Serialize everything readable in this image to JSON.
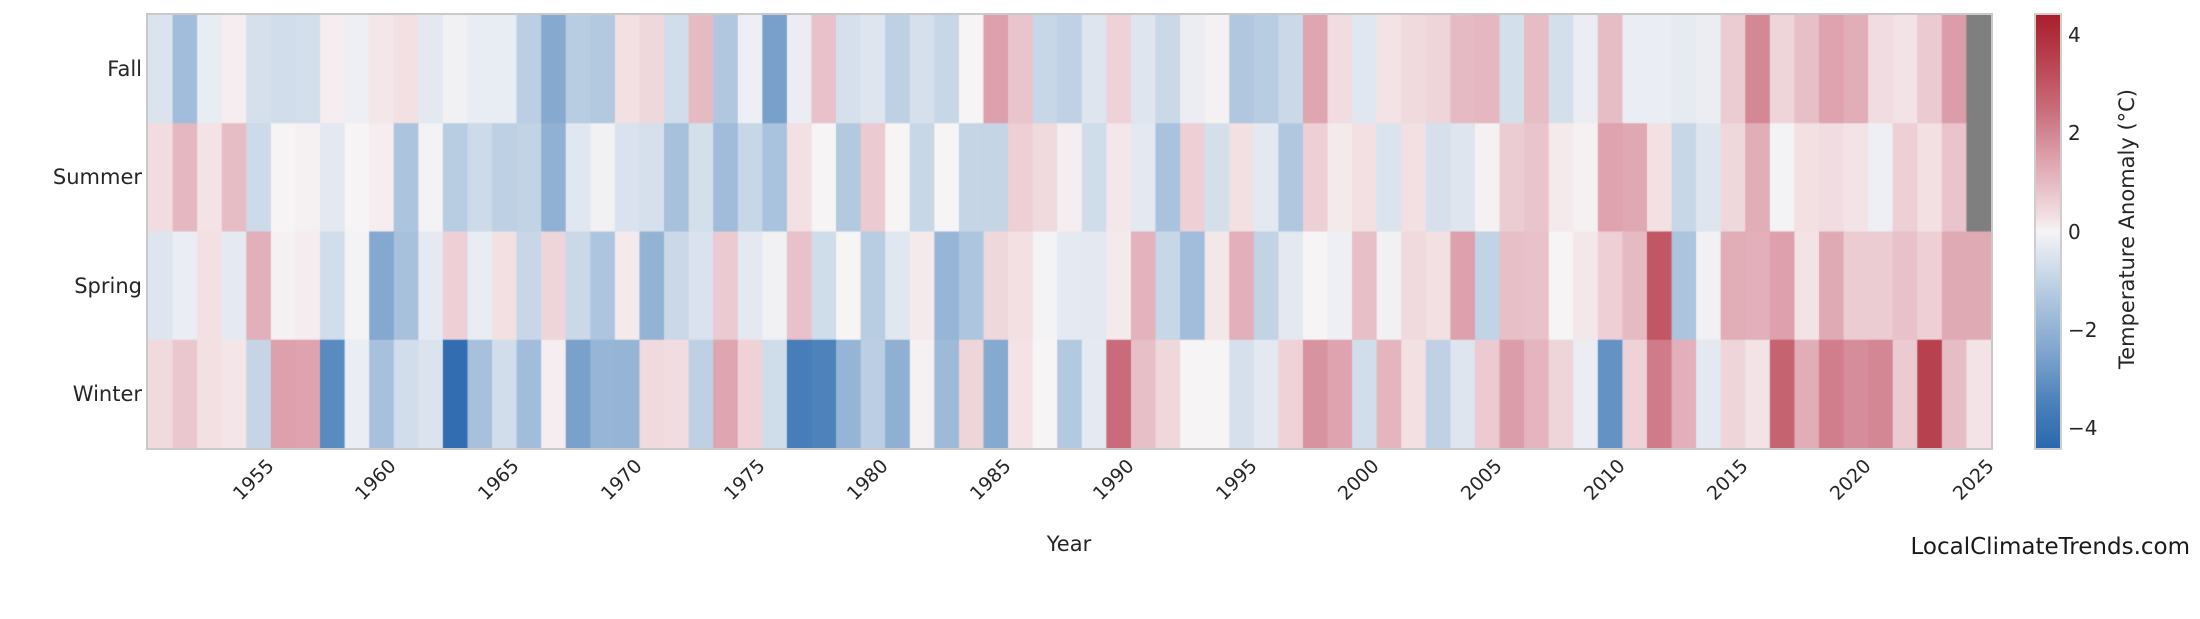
{
  "watermark": "LocalClimateTrends.com",
  "axes": {
    "xlabel": "Year",
    "x_ticks": [
      1955,
      1960,
      1965,
      1970,
      1975,
      1980,
      1985,
      1990,
      1995,
      2000,
      2005,
      2010,
      2015,
      2020,
      2025
    ]
  },
  "colorbar": {
    "label": "Temperature Anomaly (°C)",
    "ticks": [
      4,
      2,
      0,
      -2,
      -4
    ],
    "tick_labels": [
      "4",
      "2",
      "0",
      "−2",
      "−4"
    ],
    "vmin": -4.4,
    "vmax": 4.4
  },
  "colors": {
    "missing": "#7f7f7f",
    "frame": "#c9c9c9",
    "text": "#262626",
    "colormap": [
      {
        "v": -4.4,
        "c": "#2b68ae"
      },
      {
        "v": -3.5,
        "c": "#4a80ba"
      },
      {
        "v": -2.5,
        "c": "#7da3cd"
      },
      {
        "v": -1.5,
        "c": "#a9c2dd"
      },
      {
        "v": -0.8,
        "c": "#ccdae9"
      },
      {
        "v": -0.3,
        "c": "#e5eaf2"
      },
      {
        "v": 0.0,
        "c": "#f6f4f5"
      },
      {
        "v": 0.3,
        "c": "#f2e0e3"
      },
      {
        "v": 0.8,
        "c": "#e9c4cc"
      },
      {
        "v": 1.5,
        "c": "#dda0ac"
      },
      {
        "v": 2.5,
        "c": "#c96b7a"
      },
      {
        "v": 3.5,
        "c": "#b8414f"
      },
      {
        "v": 4.4,
        "c": "#a91e2c"
      }
    ]
  },
  "chart_data": {
    "type": "heatmap",
    "title": "",
    "xlabel": "Year",
    "ylabel": "",
    "x_range": [
      1951,
      2025
    ],
    "rows": [
      "Fall",
      "Summer",
      "Spring",
      "Winter"
    ],
    "legend": "Temperature Anomaly (°C), diverging blue-white-red scale from -4.4 to 4.4; gray = missing",
    "missing_cells": [
      [
        "Fall",
        2025
      ],
      [
        "Summer",
        2025
      ]
    ],
    "values": {
      "Fall": [
        -0.5,
        -1.65,
        -0.25,
        0.1,
        -0.6,
        -0.7,
        -0.65,
        0.1,
        -0.15,
        0.2,
        0.3,
        -0.35,
        -0.08,
        -0.25,
        -0.25,
        -1.15,
        -2.3,
        -1.2,
        -1.3,
        0.3,
        0.45,
        -0.7,
        1.0,
        -1.35,
        -0.15,
        -2.6,
        -0.2,
        0.85,
        -0.6,
        -0.45,
        -1.1,
        -0.6,
        -0.9,
        0.0,
        1.5,
        0.8,
        -0.9,
        -1.05,
        -0.45,
        0.55,
        -0.45,
        -0.85,
        -0.2,
        0.05,
        -1.35,
        -1.2,
        -0.85,
        1.4,
        0.35,
        -0.4,
        0.25,
        0.4,
        0.5,
        1.0,
        1.05,
        -0.65,
        0.95,
        -0.65,
        -0.2,
        0.95,
        -0.22,
        -0.22,
        -0.28,
        -0.2,
        0.65,
        1.95,
        0.5,
        0.9,
        1.45,
        1.25,
        0.35,
        0.25,
        0.7,
        1.55,
        null
      ],
      "Summer": [
        0.35,
        1.05,
        0.25,
        0.95,
        -0.8,
        0.0,
        0.05,
        -0.35,
        0.0,
        0.1,
        -1.45,
        -0.05,
        -1.2,
        -0.8,
        -1.1,
        -1.0,
        -2.05,
        -0.4,
        -0.08,
        -0.55,
        -0.6,
        -1.55,
        -0.65,
        -1.7,
        -0.9,
        -1.5,
        0.3,
        0.0,
        -1.3,
        0.7,
        0.0,
        -0.9,
        0.0,
        -0.95,
        -0.95,
        0.6,
        0.4,
        0.1,
        -0.75,
        0.2,
        -0.35,
        -1.5,
        0.6,
        -0.65,
        0.3,
        -0.35,
        -1.35,
        0.6,
        0.15,
        0.3,
        -0.5,
        0.3,
        -0.6,
        -0.45,
        0.05,
        0.65,
        0.8,
        0.15,
        0.05,
        1.45,
        1.35,
        0.3,
        -0.9,
        -0.45,
        0.45,
        1.25,
        -0.05,
        0.3,
        0.35,
        0.25,
        -0.15,
        0.6,
        0.3,
        0.8,
        null
      ],
      "Spring": [
        -0.45,
        -0.22,
        0.3,
        -0.3,
        1.2,
        0.05,
        0.12,
        -0.7,
        -0.05,
        -2.35,
        -1.55,
        -0.3,
        0.6,
        -0.25,
        0.3,
        -0.9,
        0.5,
        -0.85,
        -1.4,
        0.15,
        -2.0,
        -0.85,
        -0.55,
        0.7,
        -0.35,
        -0.08,
        0.85,
        -0.75,
        0.0,
        -1.2,
        -0.4,
        0.15,
        -1.9,
        -1.4,
        0.45,
        0.3,
        -0.05,
        -0.3,
        -0.35,
        0.15,
        1.15,
        -0.9,
        -1.65,
        0.2,
        1.2,
        -1.0,
        -0.35,
        0.0,
        -0.15,
        0.9,
        -0.08,
        0.4,
        0.3,
        1.5,
        -1.0,
        0.9,
        0.85,
        0.0,
        0.2,
        0.6,
        1.0,
        3.0,
        -1.45,
        -0.08,
        1.25,
        1.2,
        1.5,
        0.25,
        1.3,
        0.65,
        0.65,
        0.85,
        0.6,
        1.3,
        1.3
      ],
      "Winter": [
        0.4,
        0.75,
        0.3,
        0.22,
        -0.95,
        1.5,
        1.45,
        -3.2,
        -0.22,
        -1.55,
        -0.7,
        -0.5,
        -4.2,
        -1.55,
        -0.7,
        -1.65,
        0.1,
        -2.55,
        -1.9,
        -1.95,
        0.4,
        0.35,
        -1.1,
        1.4,
        0.55,
        -0.75,
        -3.6,
        -3.45,
        -1.95,
        -1.15,
        -2.1,
        0.05,
        -1.75,
        0.5,
        -2.3,
        0.25,
        0.0,
        -1.3,
        -0.3,
        2.5,
        0.9,
        0.45,
        0.0,
        0.0,
        -0.6,
        -0.35,
        0.55,
        1.75,
        1.45,
        -0.7,
        1.1,
        0.3,
        -1.05,
        -0.45,
        0.7,
        1.55,
        1.1,
        0.5,
        -0.22,
        -3.0,
        0.55,
        2.2,
        1.2,
        -0.35,
        0.5,
        0.25,
        2.7,
        1.25,
        2.15,
        1.85,
        2.0,
        0.7,
        3.5,
        0.95,
        0.25
      ]
    }
  }
}
